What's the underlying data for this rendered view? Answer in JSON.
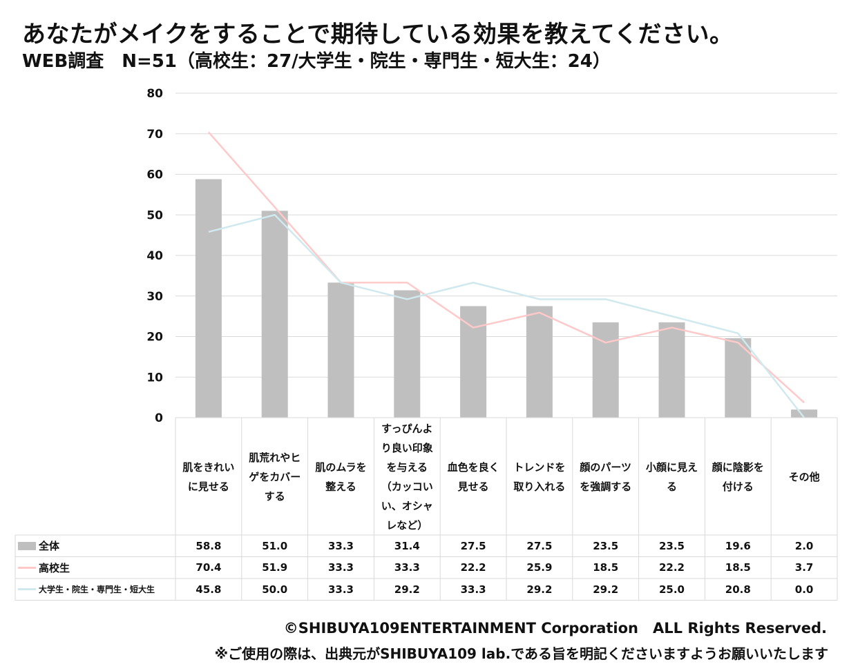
{
  "title": "あなたがメイクをすることで期待している効果を教えてください。",
  "subtitle": "WEB調査　N=51（高校生：27/大学生・院生・専門生・短大生：24）",
  "footer": {
    "copyright": "©SHIBUYA109ENTERTAINMENT Corporation　ALL Rights Reserved.",
    "note": "※ご使用の際は、出典元がSHIBUYA109 lab.である旨を明記くださいますようお願いいたします"
  },
  "colors": {
    "bar": "#bfbfbf",
    "line_high_school": "#ffc9c9",
    "line_university": "#cfe9ee",
    "grid": "#d9d9d9"
  },
  "chart_data": {
    "type": "bar",
    "ylim": [
      0,
      80
    ],
    "yticks": [
      "0",
      "10",
      "20",
      "30",
      "40",
      "50",
      "60",
      "70",
      "80"
    ],
    "grid": true,
    "legend": "data-table",
    "categories": [
      "肌をきれいに見せる",
      "肌荒れやヒゲをカバーする",
      "肌のムラを整える",
      "すっぴんより良い印象を与える（カッコいい、オシャレなど）",
      "血色を良く見せる",
      "トレンドを取り入れる",
      "顔のパーツを強調する",
      "小顔に見える",
      "顔に陰影を付ける",
      "その他"
    ],
    "series": [
      {
        "name": "全体",
        "type": "bar",
        "values": [
          58.8,
          51.0,
          33.3,
          31.4,
          27.5,
          27.5,
          23.5,
          23.5,
          19.6,
          2.0
        ],
        "labels": [
          "58.8",
          "51.0",
          "33.3",
          "31.4",
          "27.5",
          "27.5",
          "23.5",
          "23.5",
          "19.6",
          "2.0"
        ]
      },
      {
        "name": "高校生",
        "type": "line",
        "values": [
          70.4,
          51.9,
          33.3,
          33.3,
          22.2,
          25.9,
          18.5,
          22.2,
          18.5,
          3.7
        ],
        "labels": [
          "70.4",
          "51.9",
          "33.3",
          "33.3",
          "22.2",
          "25.9",
          "18.5",
          "22.2",
          "18.5",
          "3.7"
        ]
      },
      {
        "name": "大学生・院生・専門生・短大生",
        "type": "line",
        "values": [
          45.8,
          50.0,
          33.3,
          29.2,
          33.3,
          29.2,
          29.2,
          25.0,
          20.8,
          0.0
        ],
        "labels": [
          "45.8",
          "50.0",
          "33.3",
          "29.2",
          "33.3",
          "29.2",
          "29.2",
          "25.0",
          "20.8",
          "0.0"
        ]
      }
    ]
  }
}
